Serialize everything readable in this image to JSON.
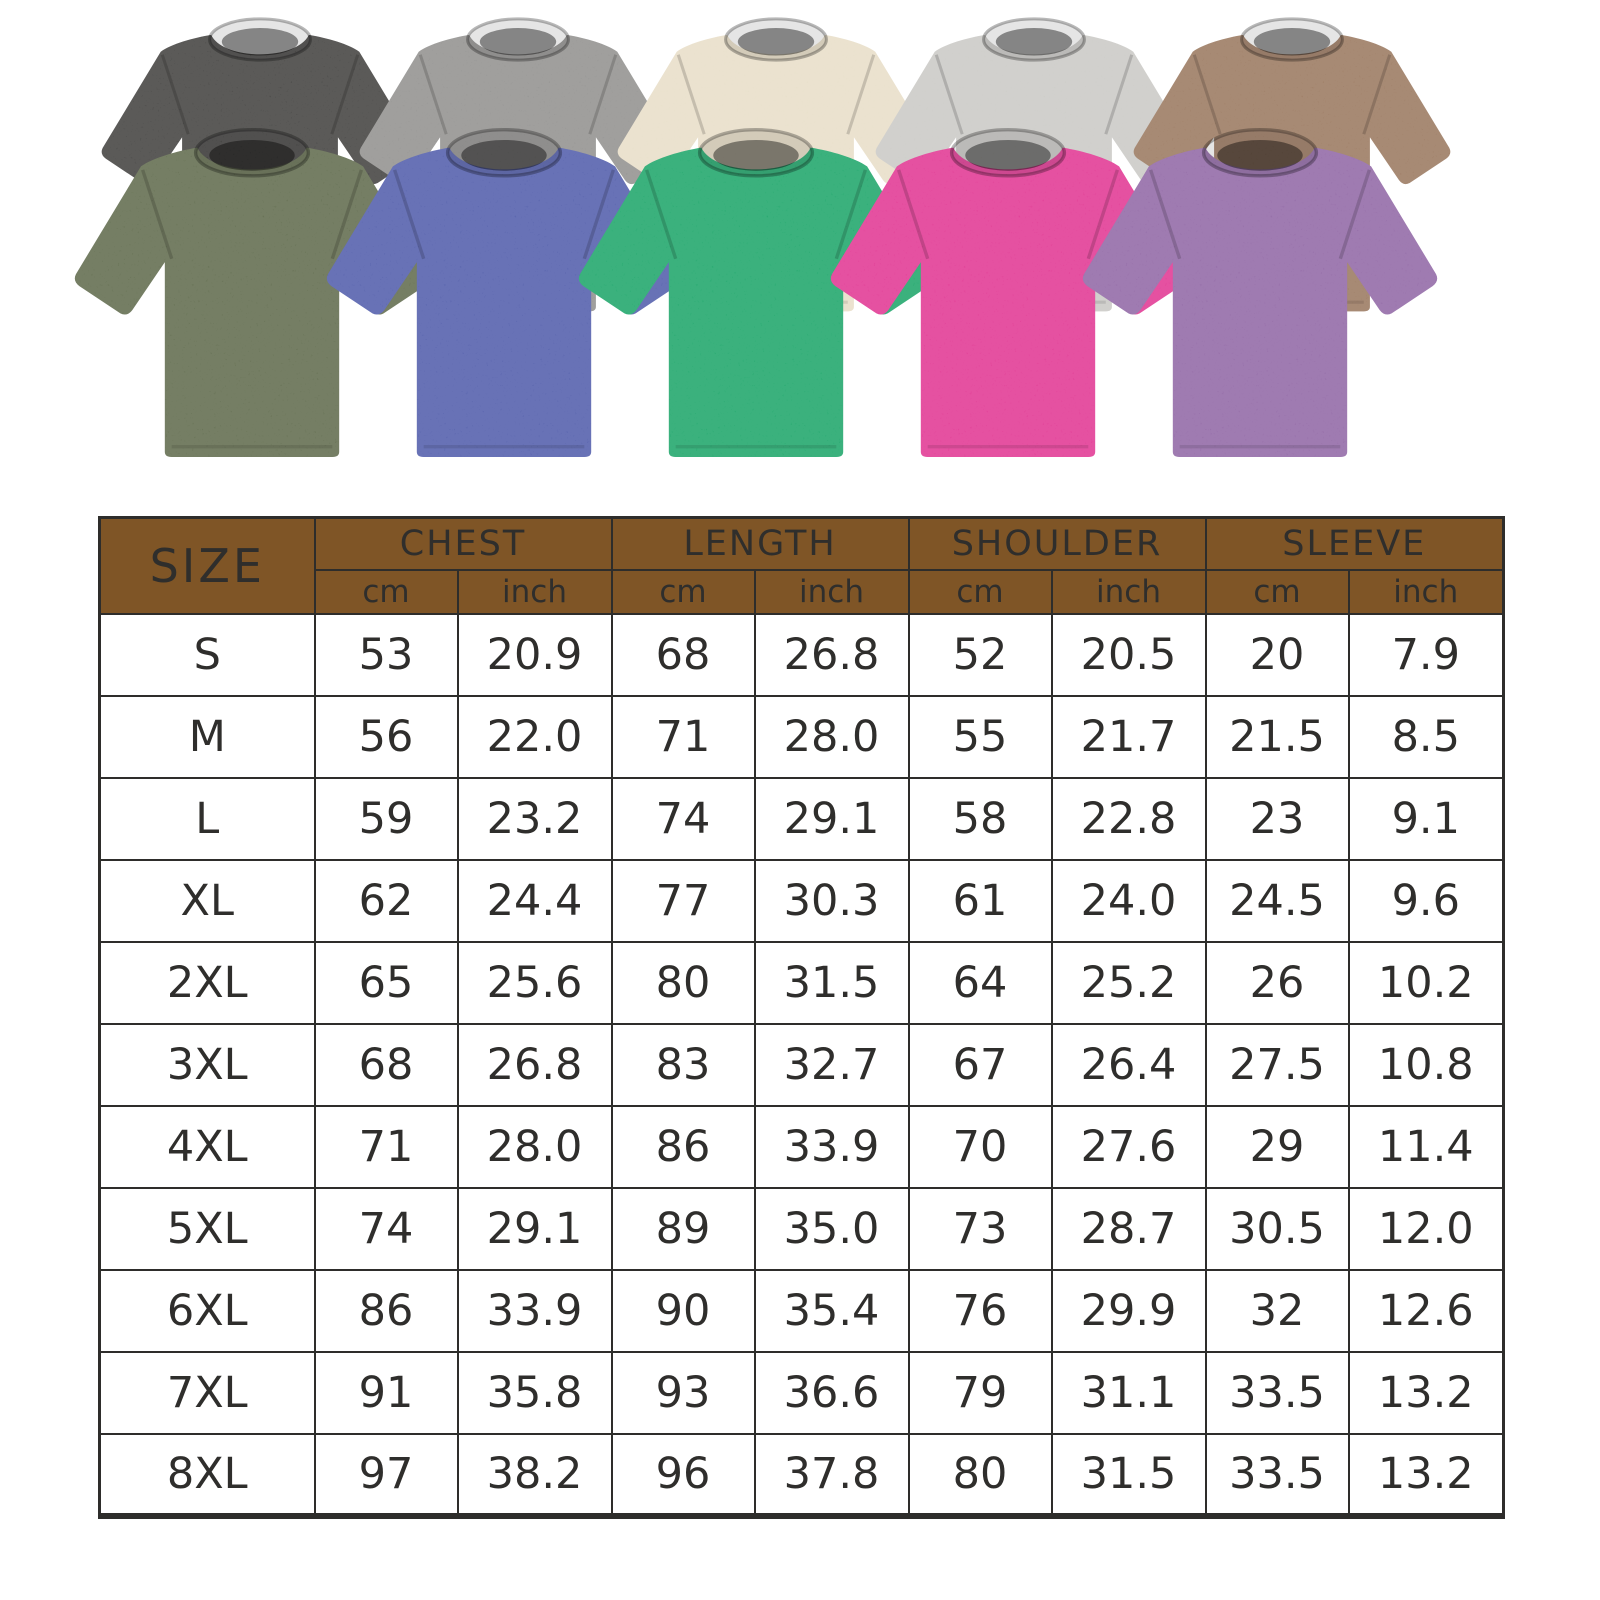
{
  "page": {
    "background": "#ffffff"
  },
  "product_gallery": {
    "back_row": [
      {
        "name": "tshirt-washed-black",
        "color": "#3c3b39"
      },
      {
        "name": "tshirt-washed-grey",
        "color": "#8e8d8b"
      },
      {
        "name": "tshirt-washed-beige",
        "color": "#e7ddc6"
      },
      {
        "name": "tshirt-washed-light-grey",
        "color": "#c9c8c4"
      },
      {
        "name": "tshirt-washed-brown",
        "color": "#97745a"
      }
    ],
    "front_row": [
      {
        "name": "tshirt-washed-army-green",
        "color": "#5b6647"
      },
      {
        "name": "tshirt-washed-blue",
        "color": "#4c58a8"
      },
      {
        "name": "tshirt-washed-green",
        "color": "#16a365"
      },
      {
        "name": "tshirt-washed-rose",
        "color": "#e0308f"
      },
      {
        "name": "tshirt-washed-purple",
        "color": "#8d62a2"
      }
    ]
  },
  "size_chart": {
    "header": {
      "size_label": "SIZE",
      "groups": [
        {
          "label": "CHEST",
          "units": [
            "cm",
            "inch"
          ]
        },
        {
          "label": "LENGTH",
          "units": [
            "cm",
            "inch"
          ]
        },
        {
          "label": "SHOULDER",
          "units": [
            "cm",
            "inch"
          ]
        },
        {
          "label": "SLEEVE",
          "units": [
            "cm",
            "inch"
          ]
        }
      ]
    },
    "rows": [
      {
        "size": "S",
        "values": [
          "53",
          "20.9",
          "68",
          "26.8",
          "52",
          "20.5",
          "20",
          "7.9"
        ]
      },
      {
        "size": "M",
        "values": [
          "56",
          "22.0",
          "71",
          "28.0",
          "55",
          "21.7",
          "21.5",
          "8.5"
        ]
      },
      {
        "size": "L",
        "values": [
          "59",
          "23.2",
          "74",
          "29.1",
          "58",
          "22.8",
          "23",
          "9.1"
        ]
      },
      {
        "size": "XL",
        "values": [
          "62",
          "24.4",
          "77",
          "30.3",
          "61",
          "24.0",
          "24.5",
          "9.6"
        ]
      },
      {
        "size": "2XL",
        "values": [
          "65",
          "25.6",
          "80",
          "31.5",
          "64",
          "25.2",
          "26",
          "10.2"
        ]
      },
      {
        "size": "3XL",
        "values": [
          "68",
          "26.8",
          "83",
          "32.7",
          "67",
          "26.4",
          "27.5",
          "10.8"
        ]
      },
      {
        "size": "4XL",
        "values": [
          "71",
          "28.0",
          "86",
          "33.9",
          "70",
          "27.6",
          "29",
          "11.4"
        ]
      },
      {
        "size": "5XL",
        "values": [
          "74",
          "29.1",
          "89",
          "35.0",
          "73",
          "28.7",
          "30.5",
          "12.0"
        ]
      },
      {
        "size": "6XL",
        "values": [
          "86",
          "33.9",
          "90",
          "35.4",
          "76",
          "29.9",
          "32",
          "12.6"
        ]
      },
      {
        "size": "7XL",
        "values": [
          "91",
          "35.8",
          "93",
          "36.6",
          "79",
          "31.1",
          "33.5",
          "13.2"
        ]
      },
      {
        "size": "8XL",
        "values": [
          "97",
          "38.2",
          "96",
          "37.8",
          "80",
          "31.5",
          "33.5",
          "13.2"
        ]
      }
    ],
    "style": {
      "header_bg": "#7f5526",
      "header_text": "#ffffff",
      "border": "#2e2d2b",
      "body_text": "#2f2e2c"
    }
  }
}
